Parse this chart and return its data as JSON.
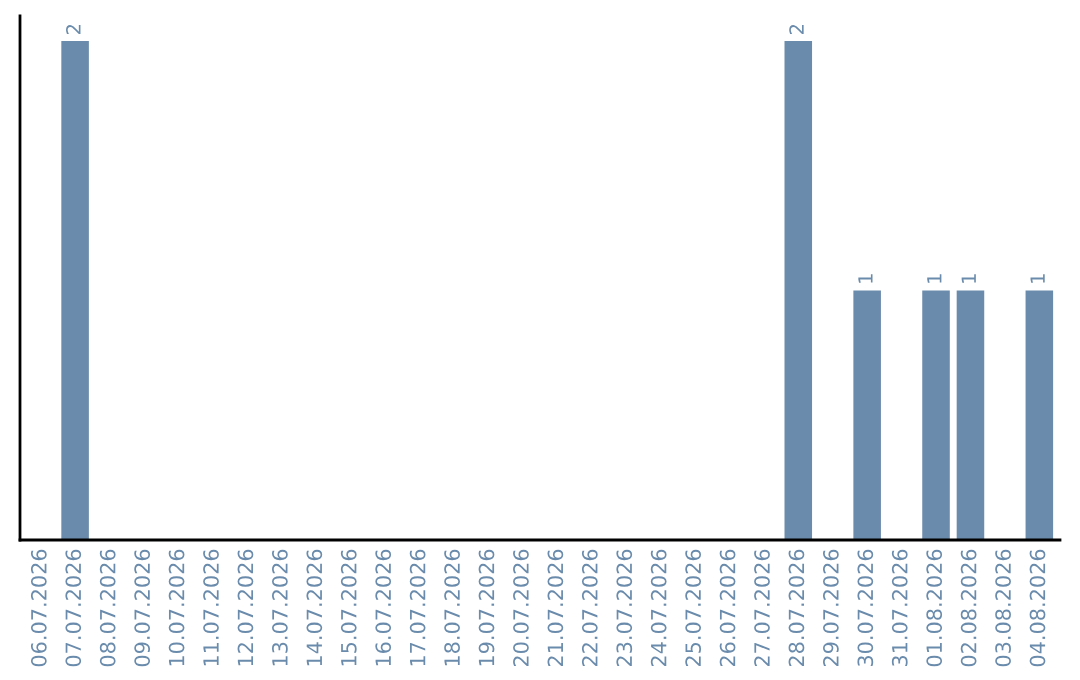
{
  "chart_data": {
    "type": "bar",
    "categories": [
      "06.07.2026",
      "07.07.2026",
      "08.07.2026",
      "09.07.2026",
      "10.07.2026",
      "11.07.2026",
      "12.07.2026",
      "13.07.2026",
      "14.07.2026",
      "15.07.2026",
      "16.07.2026",
      "17.07.2026",
      "18.07.2026",
      "19.07.2026",
      "20.07.2026",
      "21.07.2026",
      "22.07.2026",
      "23.07.2026",
      "24.07.2026",
      "25.07.2026",
      "26.07.2026",
      "27.07.2026",
      "28.07.2026",
      "29.07.2026",
      "30.07.2026",
      "31.07.2026",
      "01.08.2026",
      "02.08.2026",
      "03.08.2026",
      "04.08.2026"
    ],
    "values": [
      0,
      2,
      0,
      0,
      0,
      0,
      0,
      0,
      0,
      0,
      0,
      0,
      0,
      0,
      0,
      0,
      0,
      0,
      0,
      0,
      0,
      0,
      2,
      0,
      1,
      0,
      1,
      1,
      0,
      1
    ],
    "value_labels": [
      null,
      "2",
      null,
      null,
      null,
      null,
      null,
      null,
      null,
      null,
      null,
      null,
      null,
      null,
      null,
      null,
      null,
      null,
      null,
      null,
      null,
      null,
      "2",
      null,
      "1",
      null,
      "1",
      "1",
      null,
      "1"
    ],
    "color": "#6a8bab",
    "tick_labels": "x",
    "grid": false,
    "legend": false
  }
}
